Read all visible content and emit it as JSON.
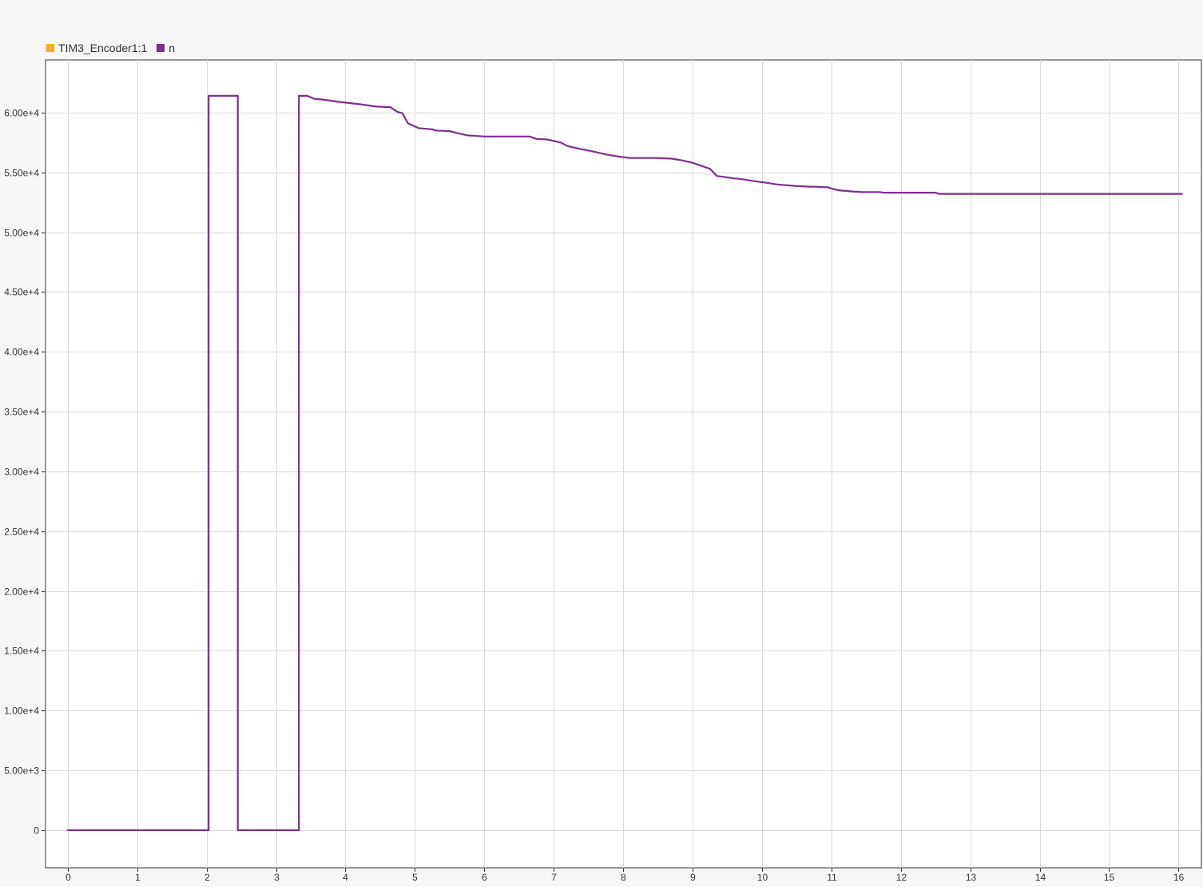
{
  "legend": {
    "items": [
      {
        "label": "TIM3_Encoder1:1",
        "color": "#f2b01e"
      },
      {
        "label": "n",
        "color": "#7e2f8e"
      }
    ]
  },
  "chart_data": {
    "type": "line",
    "title": "",
    "xlabel": "",
    "ylabel": "",
    "xlim": [
      -0.32,
      16.33
    ],
    "ylim": [
      -3150,
      64400
    ],
    "grid": true,
    "legend_position": "top-left",
    "x_ticks": [
      0,
      1,
      2,
      3,
      4,
      5,
      6,
      7,
      8,
      9,
      10,
      11,
      12,
      13,
      14,
      15,
      16
    ],
    "x_tick_labels": [
      "0",
      "1",
      "2",
      "3",
      "4",
      "5",
      "6",
      "7",
      "8",
      "9",
      "10",
      "11",
      "12",
      "13",
      "14",
      "15",
      "16"
    ],
    "y_ticks": [
      0,
      5000,
      10000,
      15000,
      20000,
      25000,
      30000,
      35000,
      40000,
      45000,
      50000,
      55000,
      60000
    ],
    "y_tick_labels": [
      "0",
      "5.00e+3",
      "1.00e+4",
      "1.50e+4",
      "2.00e+4",
      "2.50e+4",
      "3.00e+4",
      "3.50e+4",
      "4.00e+4",
      "4.50e+4",
      "5.00e+4",
      "5.50e+4",
      "6.00e+4"
    ],
    "series": [
      {
        "name": "n",
        "color": "#7e2f8e",
        "x": [
          0,
          2.03,
          2.03,
          2.45,
          2.45,
          3.33,
          3.33,
          3.45,
          3.55,
          3.65,
          3.9,
          4.05,
          4.2,
          4.45,
          4.65,
          4.75,
          4.82,
          4.9,
          5.05,
          5.25,
          5.3,
          5.5,
          5.6,
          5.75,
          6.0,
          6.3,
          6.65,
          6.75,
          6.9,
          7.1,
          7.2,
          7.35,
          7.6,
          7.75,
          7.95,
          8.1,
          8.45,
          8.7,
          8.85,
          9.0,
          9.15,
          9.25,
          9.35,
          9.6,
          9.75,
          9.85,
          10.1,
          10.2,
          10.5,
          10.7,
          10.75,
          10.95,
          11.0,
          11.1,
          11.3,
          11.45,
          11.7,
          11.75,
          12.5,
          12.55,
          16.05
        ],
        "values": [
          0,
          0,
          61400,
          61400,
          0,
          0,
          61400,
          61400,
          61150,
          61100,
          60900,
          60800,
          60700,
          60500,
          60450,
          60050,
          59950,
          59100,
          58700,
          58600,
          58500,
          58450,
          58300,
          58100,
          58000,
          58000,
          58000,
          57800,
          57750,
          57500,
          57200,
          57000,
          56700,
          56500,
          56300,
          56200,
          56200,
          56150,
          56000,
          55800,
          55500,
          55300,
          54700,
          54500,
          54400,
          54300,
          54100,
          54000,
          53850,
          53800,
          53800,
          53750,
          53650,
          53500,
          53400,
          53350,
          53350,
          53300,
          53300,
          53200,
          53200
        ]
      }
    ]
  }
}
